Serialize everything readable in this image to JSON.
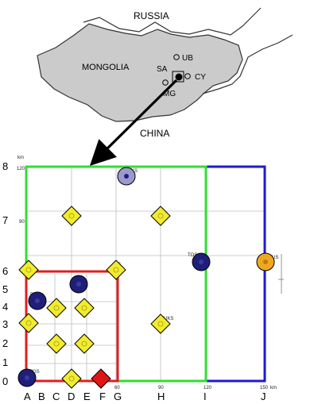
{
  "locator": {
    "countries": [
      {
        "name": "RUSSIA",
        "key": "russia"
      },
      {
        "name": "MONGOLIA",
        "key": "mongolia"
      },
      {
        "name": "CHINA",
        "key": "china"
      }
    ],
    "places": [
      {
        "code": "UB",
        "key": "ub"
      },
      {
        "code": "SA",
        "key": "sa"
      },
      {
        "code": "CY",
        "key": "cy"
      },
      {
        "code": "MG",
        "key": "mg"
      }
    ]
  },
  "grid": {
    "unit": "km",
    "x_km_ticks": [
      "60",
      "90",
      "120",
      "150"
    ],
    "y_km_ticks": [
      "90",
      "120"
    ],
    "col_labels": [
      "A",
      "B",
      "C",
      "D",
      "E",
      "F",
      "G",
      "H",
      "I",
      "J"
    ],
    "row_labels": [
      "0",
      "1",
      "2",
      "3",
      "4",
      "5",
      "6",
      "7",
      "8"
    ],
    "station_labels": [
      "KS",
      "TOS",
      "US",
      "BJ",
      "MGS",
      "UKS",
      "KS"
    ]
  },
  "colors": {
    "green_box": "#33dd33",
    "blue_box": "#1b1bd0",
    "red_box": "#e01e1e",
    "yellow_marker": "#f2ec2c",
    "navy_marker": "#1f1f7a",
    "lavender_marker": "#9a9ad0",
    "orange_marker": "#f0a820",
    "red_marker": "#e01515"
  }
}
